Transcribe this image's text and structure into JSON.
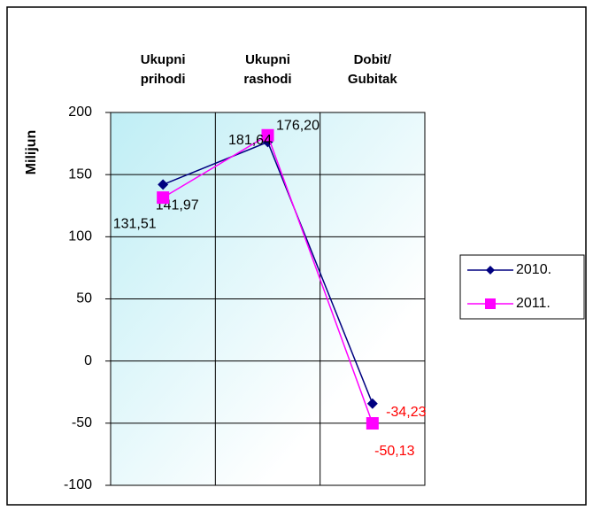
{
  "chart_data": {
    "type": "line",
    "y_label": "Milijun",
    "categories": [
      "Ukupni prihodi",
      "Ukupni rashodi",
      "Dobit/ Gubitak"
    ],
    "series": [
      {
        "name": "2010.",
        "color": "#000080",
        "marker": "diamond",
        "values": [
          141.97,
          176.2,
          -34.23
        ],
        "value_labels": [
          "141,97",
          "176,20",
          "-34,23"
        ]
      },
      {
        "name": "2011.",
        "color": "#ff00ff",
        "marker": "square",
        "values": [
          131.51,
          181.64,
          -50.13
        ],
        "value_labels": [
          "131,51",
          "181,64",
          "-50,13"
        ]
      }
    ],
    "negative_label_color": "#ff0000",
    "ylim": [
      -100,
      200
    ],
    "yticks": [
      -100,
      -50,
      0,
      50,
      100,
      150,
      200
    ],
    "grid": true,
    "legend": "right"
  }
}
